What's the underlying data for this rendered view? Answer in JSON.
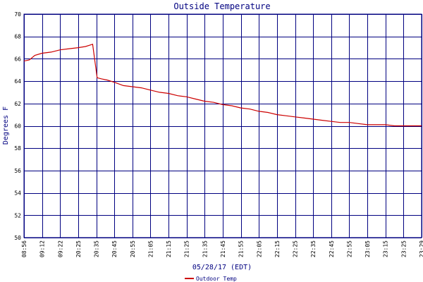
{
  "chart_data": {
    "type": "line",
    "title": "Outside Temperature",
    "xlabel": "05/28/17 (EDT)",
    "ylabel": "Degrees F",
    "ylim": [
      50,
      70
    ],
    "yticks": [
      50,
      52,
      54,
      56,
      58,
      60,
      62,
      64,
      66,
      68,
      70
    ],
    "xticks": [
      "08:56",
      "09:12",
      "09:22",
      "20:25",
      "20:35",
      "20:45",
      "20:55",
      "21:05",
      "21:15",
      "21:25",
      "21:35",
      "21:45",
      "21:55",
      "22:05",
      "22:15",
      "22:25",
      "22:35",
      "22:45",
      "22:55",
      "23:05",
      "23:15",
      "23:25",
      "23:29"
    ],
    "grid": true,
    "legend": "bottom-left",
    "colors": {
      "line": "#cc0000",
      "grid": "#000080",
      "axis_text": "#000080"
    },
    "series": [
      {
        "name": "Outdoor Temp",
        "points": [
          [
            0,
            65.8
          ],
          [
            0.3,
            65.9
          ],
          [
            0.6,
            66.3
          ],
          [
            1.0,
            66.5
          ],
          [
            1.5,
            66.6
          ],
          [
            2.0,
            66.8
          ],
          [
            2.5,
            66.9
          ],
          [
            3.0,
            67.0
          ],
          [
            3.4,
            67.1
          ],
          [
            3.8,
            67.3
          ],
          [
            4.05,
            64.3
          ],
          [
            4.3,
            64.2
          ],
          [
            4.6,
            64.1
          ],
          [
            5.0,
            63.9
          ],
          [
            5.5,
            63.6
          ],
          [
            6.0,
            63.5
          ],
          [
            6.5,
            63.4
          ],
          [
            7.0,
            63.2
          ],
          [
            7.5,
            63.0
          ],
          [
            8.0,
            62.9
          ],
          [
            8.5,
            62.7
          ],
          [
            9.0,
            62.6
          ],
          [
            9.5,
            62.4
          ],
          [
            10.0,
            62.2
          ],
          [
            10.5,
            62.1
          ],
          [
            11.0,
            61.9
          ],
          [
            11.5,
            61.8
          ],
          [
            12.0,
            61.6
          ],
          [
            12.5,
            61.5
          ],
          [
            13.0,
            61.3
          ],
          [
            13.5,
            61.2
          ],
          [
            14.0,
            61.0
          ],
          [
            14.5,
            60.9
          ],
          [
            15.0,
            60.8
          ],
          [
            15.5,
            60.7
          ],
          [
            16.0,
            60.6
          ],
          [
            16.5,
            60.5
          ],
          [
            17.0,
            60.4
          ],
          [
            17.5,
            60.3
          ],
          [
            18.0,
            60.3
          ],
          [
            18.5,
            60.2
          ],
          [
            19.0,
            60.1
          ],
          [
            19.5,
            60.1
          ],
          [
            20.0,
            60.1
          ],
          [
            20.5,
            60.0
          ],
          [
            21.0,
            60.0
          ],
          [
            21.5,
            60.0
          ],
          [
            22.0,
            60.0
          ]
        ]
      }
    ]
  }
}
